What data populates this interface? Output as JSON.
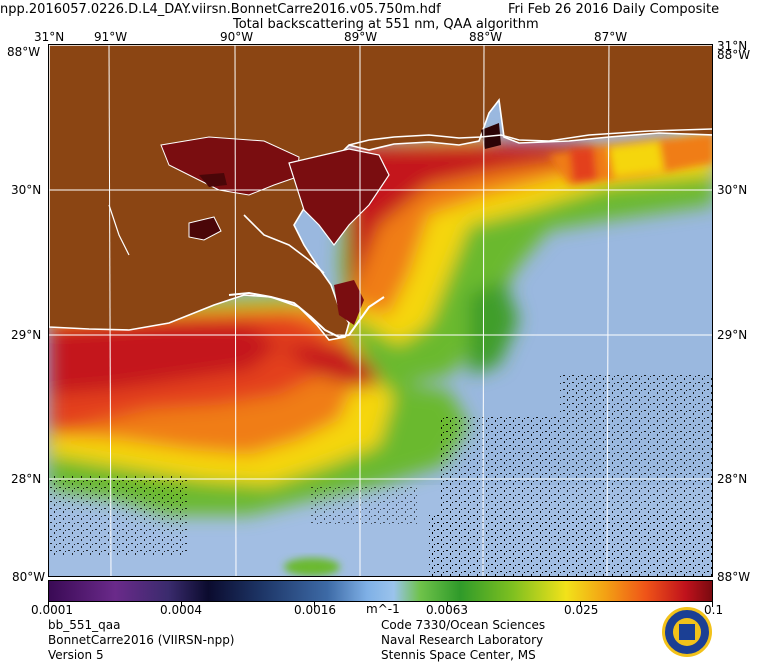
{
  "header": {
    "filename": "npp.2016057.0226.D.L4_DAY.viirsn.BonnetCarre2016.v05.750m.hdf",
    "date": "Fri Feb 26 2016 Daily Composite",
    "product": "Total backscattering at 551 nm, QAA algorithm"
  },
  "axes": {
    "top_lon": [
      "91°W",
      "90°W",
      "89°W",
      "88°W",
      "87°W"
    ],
    "lat_left": [
      "31°N",
      "30°N",
      "29°N",
      "28°N"
    ],
    "lat_right": [
      "31°N",
      "30°N",
      "29°N",
      "28°N"
    ],
    "corner_top_left": "88°W",
    "corner_top_right": "88°W",
    "corner_bottom_left": "80°W",
    "corner_bottom_right": "88°W"
  },
  "colorbar": {
    "labels": [
      "0.0001",
      "0.0004",
      "0.0016",
      "0.0063",
      "0.025",
      "0.1"
    ],
    "unit": "m^-1"
  },
  "footer": {
    "left": [
      "bb_551_qaa",
      "BonnetCarre2016 (VIIRSN-npp)",
      "Version 5"
    ],
    "right": [
      "Code 7330/Ocean Sciences",
      "Naval Research Laboratory",
      "Stennis Space Center, MS"
    ]
  },
  "colors": {
    "land": "#8b4513",
    "coastline": "#ffffff",
    "grid": "#ffffff",
    "open_water": "#9ab8df",
    "plume_high": "#c4161c",
    "plume_mid": "#f07d14",
    "plume_low": "#5fb328"
  },
  "logo": "naval-research-laboratory-seal-icon"
}
